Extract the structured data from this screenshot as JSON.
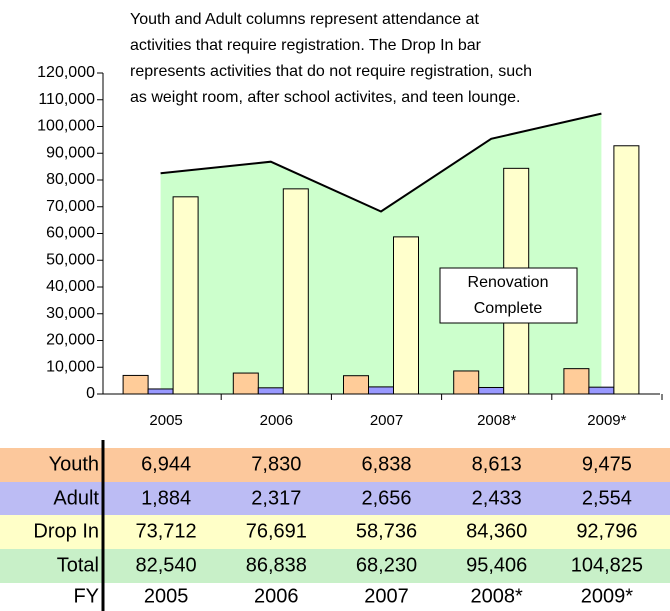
{
  "chart_data": {
    "type": "bar",
    "annotation": [
      "Youth and Adult columns represent attendance at",
      "activities that require registration. The Drop In bar",
      "represents activities that do not require registration, such",
      "as weight room, after school activites, and teen lounge."
    ],
    "callout": [
      "Renovation",
      "Complete"
    ],
    "fy_label": "FY",
    "categories": [
      "2005",
      "2006",
      "2007",
      "2008*",
      "2009*"
    ],
    "series": [
      {
        "name": "Youth",
        "type": "bar",
        "color": "#ffcc99",
        "values": [
          6944,
          7830,
          6838,
          8613,
          9475
        ],
        "value_labels": [
          "6,944",
          "7,830",
          "6,838",
          "8,613",
          "9,475"
        ]
      },
      {
        "name": "Adult",
        "type": "bar",
        "color": "#9999ff",
        "values": [
          1884,
          2317,
          2656,
          2433,
          2554
        ],
        "value_labels": [
          "1,884",
          "2,317",
          "2,656",
          "2,433",
          "2,554"
        ]
      },
      {
        "name": "Drop In",
        "type": "bar",
        "color": "#ffffcc",
        "values": [
          73712,
          76691,
          58736,
          84360,
          92796
        ],
        "value_labels": [
          "73,712",
          "76,691",
          "58,736",
          "84,360",
          "92,796"
        ]
      },
      {
        "name": "Total",
        "type": "area",
        "color": "#ccffcc",
        "values": [
          82540,
          86838,
          68230,
          95406,
          104825
        ],
        "value_labels": [
          "82,540",
          "86,838",
          "68,230",
          "95,406",
          "104,825"
        ]
      }
    ],
    "ylim": [
      0,
      120000
    ],
    "yticks": [
      0,
      {
        "value": 10000,
        "label": "10,000"
      },
      {
        "value": 20000,
        "label": "20,000"
      },
      {
        "value": 30000,
        "label": "30,000"
      },
      {
        "value": 40000,
        "label": "40,000"
      },
      {
        "value": 50000,
        "label": "50,000"
      },
      {
        "value": 60000,
        "label": "60,000"
      },
      {
        "value": 70000,
        "label": "70,000"
      },
      {
        "value": 80000,
        "label": "80,000"
      },
      {
        "value": 90000,
        "label": "90,000"
      },
      {
        "value": 100000,
        "label": "100,000"
      },
      {
        "value": 110000,
        "label": "110,000"
      },
      {
        "value": 120000,
        "label": "120,000"
      }
    ],
    "row_colors": [
      "#fcc89c",
      "#bcbcf4",
      "#ffffc8",
      "#c8f0c8"
    ]
  }
}
